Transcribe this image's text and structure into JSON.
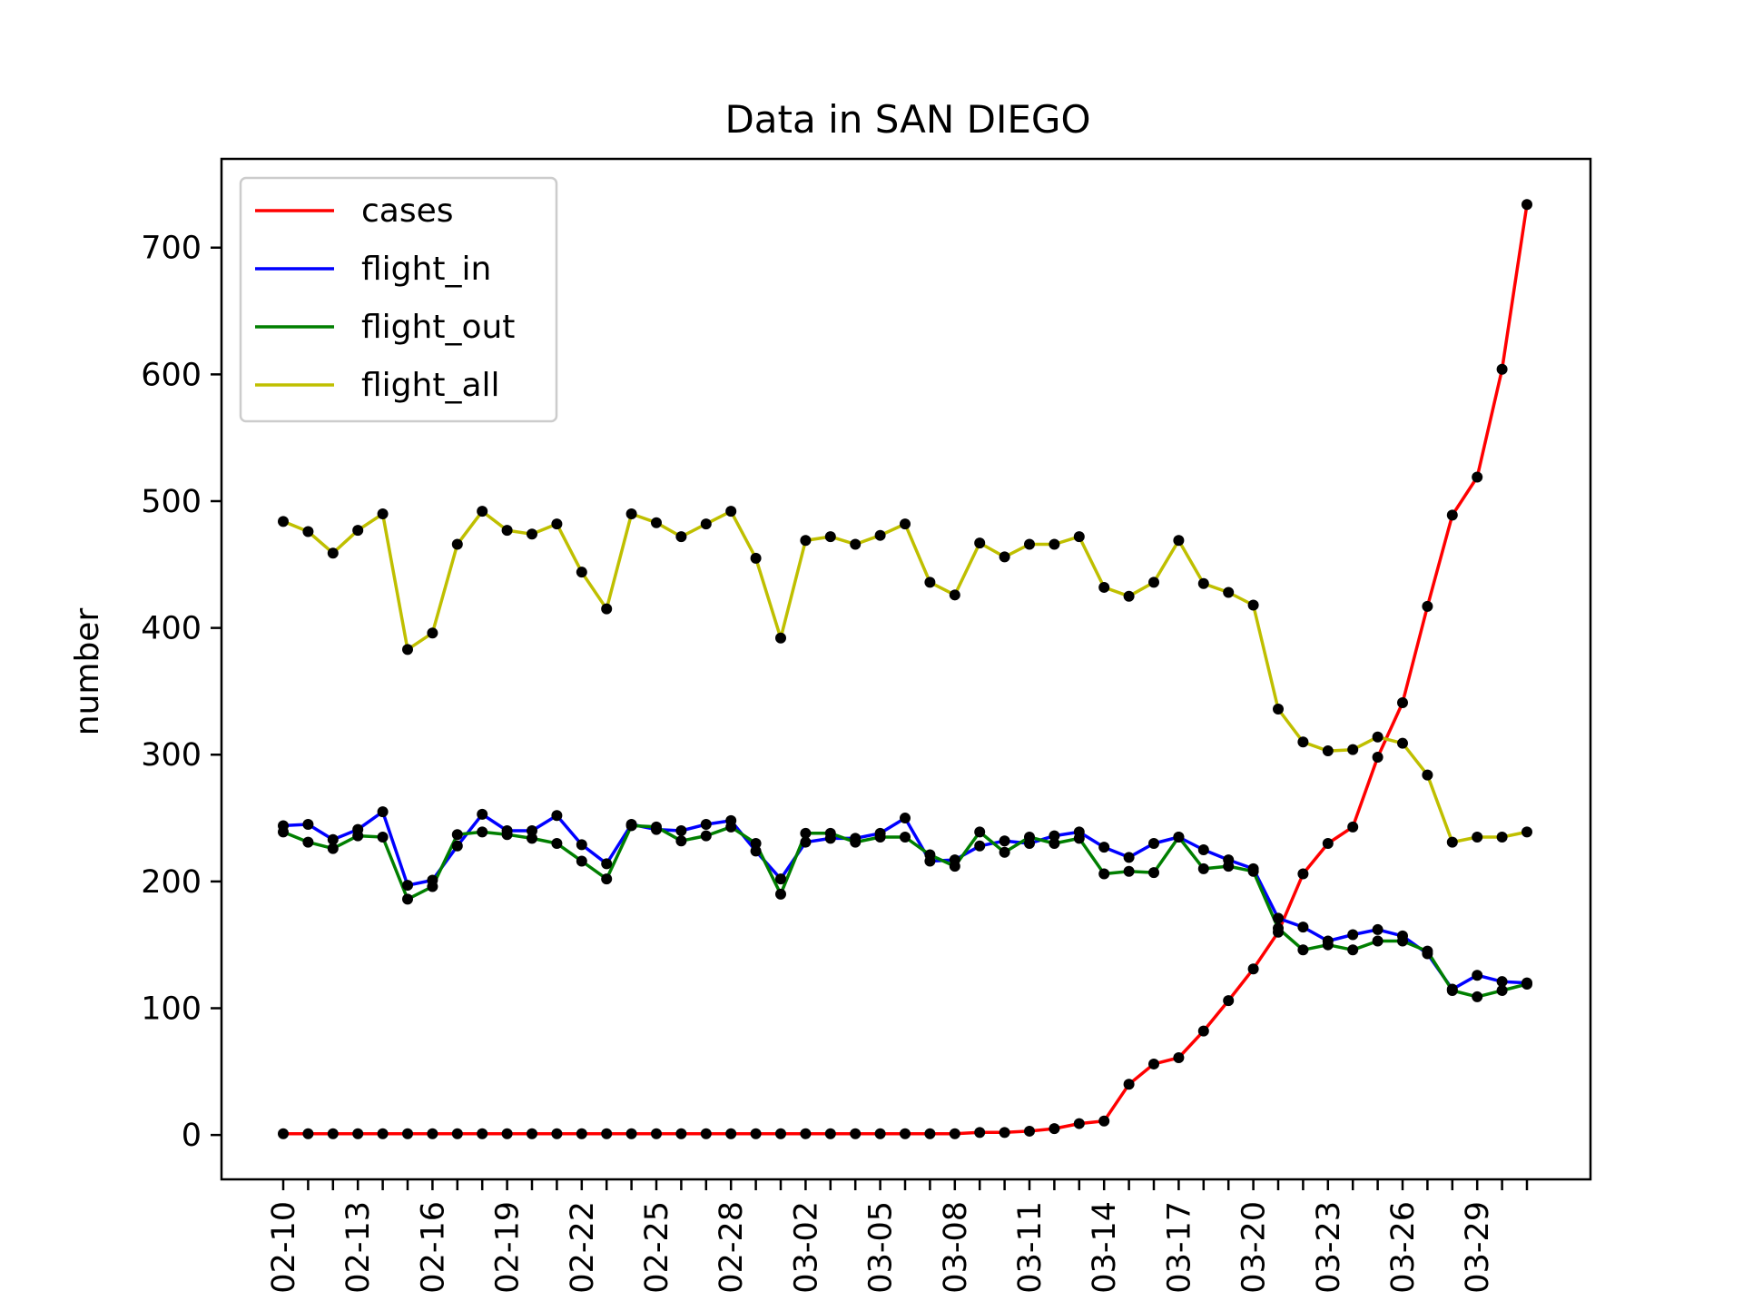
{
  "chart_data": {
    "type": "line",
    "title": "Data in SAN DIEGO",
    "xlabel": "",
    "ylabel": "number",
    "ylim": [
      -35,
      770
    ],
    "yticks": [
      0,
      100,
      200,
      300,
      400,
      500,
      600,
      700
    ],
    "legend_position": "top-left",
    "grid": false,
    "marker": "black dots",
    "x": [
      "02-10",
      "02-11",
      "02-12",
      "02-13",
      "02-14",
      "02-15",
      "02-16",
      "02-17",
      "02-18",
      "02-19",
      "02-20",
      "02-21",
      "02-22",
      "02-23",
      "02-24",
      "02-25",
      "02-26",
      "02-27",
      "02-28",
      "02-29",
      "03-01",
      "03-02",
      "03-03",
      "03-04",
      "03-05",
      "03-06",
      "03-07",
      "03-08",
      "03-09",
      "03-10",
      "03-11",
      "03-12",
      "03-13",
      "03-14",
      "03-15",
      "03-16",
      "03-17",
      "03-18",
      "03-19",
      "03-20",
      "03-21",
      "03-22",
      "03-23",
      "03-24",
      "03-25",
      "03-26",
      "03-27",
      "03-28",
      "03-29",
      "03-30",
      "03-31"
    ],
    "xtick_labels": [
      "02-10",
      "02-13",
      "02-16",
      "02-19",
      "02-22",
      "02-25",
      "02-28",
      "03-02",
      "03-05",
      "03-08",
      "03-11",
      "03-14",
      "03-17",
      "03-20",
      "03-23",
      "03-26",
      "03-29"
    ],
    "series": [
      {
        "name": "cases",
        "color": "#ff0000",
        "values": [
          1,
          1,
          1,
          1,
          1,
          1,
          1,
          1,
          1,
          1,
          1,
          1,
          1,
          1,
          1,
          1,
          1,
          1,
          1,
          1,
          1,
          1,
          1,
          1,
          1,
          1,
          1,
          1,
          2,
          2,
          3,
          5,
          9,
          11,
          40,
          56,
          61,
          82,
          106,
          131,
          160,
          206,
          230,
          243,
          298,
          341,
          417,
          489,
          519,
          604,
          734
        ]
      },
      {
        "name": "flight_in",
        "color": "#0000ff",
        "values": [
          244,
          245,
          233,
          241,
          255,
          197,
          201,
          228,
          253,
          240,
          240,
          252,
          229,
          214,
          245,
          241,
          240,
          245,
          248,
          224,
          202,
          231,
          234,
          234,
          238,
          250,
          216,
          217,
          228,
          232,
          230,
          236,
          239,
          227,
          219,
          230,
          235,
          225,
          217,
          210,
          171,
          164,
          153,
          158,
          162,
          157,
          143,
          115,
          126,
          121,
          120
        ]
      },
      {
        "name": "flight_out",
        "color": "#007f00",
        "values": [
          239,
          231,
          226,
          236,
          235,
          186,
          196,
          237,
          239,
          237,
          234,
          230,
          216,
          202,
          244,
          243,
          232,
          236,
          243,
          230,
          190,
          238,
          238,
          231,
          235,
          235,
          221,
          212,
          239,
          223,
          235,
          230,
          234,
          206,
          208,
          207,
          235,
          210,
          212,
          208,
          163,
          146,
          150,
          146,
          153,
          153,
          145,
          114,
          109,
          114,
          119
        ]
      },
      {
        "name": "flight_all",
        "color": "#bfbf00",
        "values": [
          484,
          476,
          459,
          477,
          490,
          383,
          396,
          466,
          492,
          477,
          474,
          482,
          444,
          415,
          490,
          483,
          472,
          482,
          492,
          455,
          392,
          469,
          472,
          466,
          473,
          482,
          436,
          426,
          467,
          456,
          466,
          466,
          472,
          432,
          425,
          436,
          469,
          435,
          428,
          418,
          336,
          310,
          303,
          304,
          314,
          309,
          284,
          231,
          235,
          235,
          239
        ]
      }
    ]
  }
}
